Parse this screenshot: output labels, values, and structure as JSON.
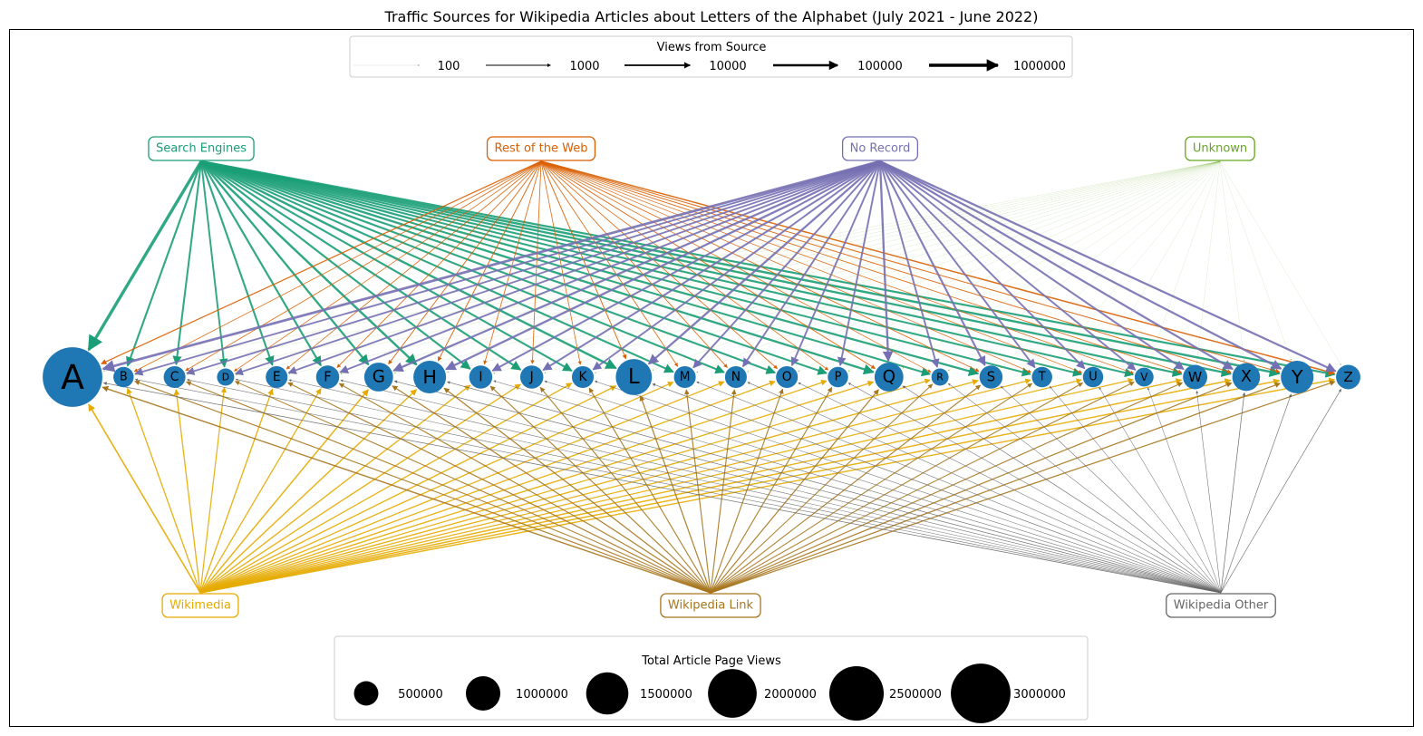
{
  "title": "Traffic Sources for Wikipedia Articles about Letters of the Alphabet (July 2021 - June 2022)",
  "sources": [
    {
      "id": "search",
      "label": "Search Engines",
      "color": "#1b9e77",
      "position": "top"
    },
    {
      "id": "web",
      "label": "Rest of the Web",
      "color": "#d95f02",
      "position": "top"
    },
    {
      "id": "norecord",
      "label": "No Record",
      "color": "#7570b3",
      "position": "top"
    },
    {
      "id": "unknown",
      "label": "Unknown",
      "color": "#66a61e",
      "position": "top"
    },
    {
      "id": "wikimedia",
      "label": "Wikimedia",
      "color": "#e6ab02",
      "position": "bottom"
    },
    {
      "id": "wikilink",
      "label": "Wikipedia Link",
      "color": "#a6761d",
      "position": "bottom"
    },
    {
      "id": "wikiother",
      "label": "Wikipedia Other",
      "color": "#666666",
      "position": "bottom"
    }
  ],
  "letters": [
    "A",
    "B",
    "C",
    "D",
    "E",
    "F",
    "G",
    "H",
    "I",
    "J",
    "K",
    "L",
    "M",
    "N",
    "O",
    "P",
    "Q",
    "R",
    "S",
    "T",
    "U",
    "V",
    "W",
    "X",
    "Y",
    "Z"
  ],
  "node_color": "#1f77b4",
  "total_views": [
    3000000,
    350000,
    400000,
    250000,
    400000,
    450000,
    700000,
    900000,
    450000,
    450000,
    400000,
    1100000,
    400000,
    400000,
    400000,
    350000,
    700000,
    250000,
    450000,
    350000,
    350000,
    300000,
    500000,
    650000,
    900000,
    500000
  ],
  "edge_views": {
    "search": [
      1000000,
      25000,
      20000,
      15000,
      25000,
      30000,
      45000,
      80000,
      30000,
      30000,
      25000,
      70000,
      25000,
      25000,
      25000,
      25000,
      50000,
      20000,
      40000,
      20000,
      20000,
      20000,
      30000,
      40000,
      60000,
      30000
    ],
    "web": [
      2000,
      600,
      600,
      500,
      600,
      700,
      900,
      1000,
      700,
      700,
      600,
      1000,
      700,
      700,
      700,
      600,
      900,
      500,
      700,
      500,
      500,
      500,
      700,
      900,
      1000,
      4000
    ],
    "norecord": [
      150000,
      12000,
      12000,
      10000,
      12000,
      15000,
      40000,
      45000,
      20000,
      20000,
      15000,
      40000,
      15000,
      15000,
      15000,
      15000,
      45000,
      15000,
      25000,
      15000,
      15000,
      15000,
      20000,
      35000,
      40000,
      35000
    ],
    "unknown": [
      30,
      10,
      10,
      8,
      10,
      10,
      15,
      15,
      10,
      10,
      10,
      20,
      10,
      10,
      10,
      10,
      15,
      8,
      10,
      10,
      10,
      10,
      10,
      15,
      15,
      15
    ],
    "wikimedia": [
      6000,
      2500,
      2500,
      2000,
      3000,
      2500,
      4500,
      3500,
      3000,
      3000,
      2500,
      3000,
      2500,
      2500,
      2500,
      2500,
      3000,
      2000,
      3000,
      2000,
      2000,
      2000,
      3000,
      4000,
      3500,
      3000
    ],
    "wikilink": [
      3000,
      1500,
      1500,
      1200,
      1500,
      1500,
      2000,
      2000,
      1500,
      1500,
      1500,
      2000,
      1500,
      1500,
      1500,
      1500,
      2000,
      1200,
      1500,
      1200,
      1200,
      1200,
      1500,
      2000,
      2000,
      2000
    ],
    "wikiother": [
      500,
      300,
      300,
      250,
      300,
      300,
      400,
      400,
      300,
      300,
      300,
      400,
      300,
      300,
      300,
      300,
      400,
      250,
      300,
      250,
      250,
      250,
      300,
      500,
      400,
      400
    ]
  },
  "edge_legend": {
    "title": "Views from Source",
    "values": [
      100,
      1000,
      10000,
      100000,
      1000000
    ],
    "labels": [
      "100",
      "1000",
      "10000",
      "100000",
      "1000000"
    ]
  },
  "size_legend": {
    "title": "Total Article Page Views",
    "values": [
      500000,
      1000000,
      1500000,
      2000000,
      2500000,
      3000000
    ],
    "labels": [
      "500000",
      "1000000",
      "1500000",
      "2000000",
      "2500000",
      "3000000"
    ]
  }
}
